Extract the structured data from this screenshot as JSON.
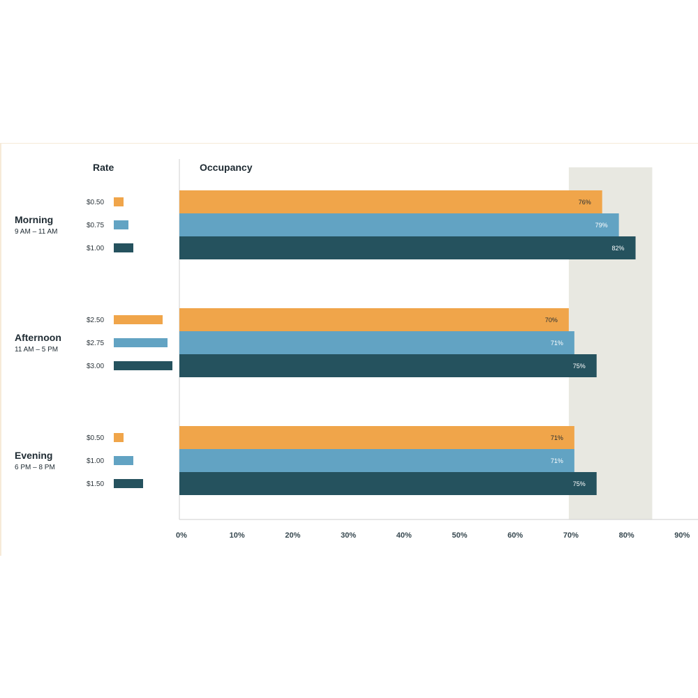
{
  "chart_data": {
    "type": "bar",
    "orientation": "horizontal",
    "rate_header": "Rate",
    "occupancy_header": "Occupancy",
    "x_range": [
      0,
      90
    ],
    "x_ticks": [
      "0%",
      "10%",
      "20%",
      "30%",
      "40%",
      "50%",
      "60%",
      "70%",
      "80%",
      "90%"
    ],
    "target_band": [
      70,
      85
    ],
    "colors": {
      "tier1": "#f0a54a",
      "tier2": "#62a3c3",
      "tier3": "#25525e",
      "band": "#e8e8e1"
    },
    "groups": [
      {
        "name": "Morning",
        "time": "9 AM – 11 AM",
        "bars": [
          {
            "rate_label": "$0.50",
            "rate": 0.5,
            "occupancy": 76,
            "value_label": "76%"
          },
          {
            "rate_label": "$0.75",
            "rate": 0.75,
            "occupancy": 79,
            "value_label": "79%"
          },
          {
            "rate_label": "$1.00",
            "rate": 1.0,
            "occupancy": 82,
            "value_label": "82%"
          }
        ]
      },
      {
        "name": "Afternoon",
        "time": "11 AM – 5 PM",
        "bars": [
          {
            "rate_label": "$2.50",
            "rate": 2.5,
            "occupancy": 70,
            "value_label": "70%"
          },
          {
            "rate_label": "$2.75",
            "rate": 2.75,
            "occupancy": 71,
            "value_label": "71%"
          },
          {
            "rate_label": "$3.00",
            "rate": 3.0,
            "occupancy": 75,
            "value_label": "75%"
          }
        ]
      },
      {
        "name": "Evening",
        "time": "6 PM – 8 PM",
        "bars": [
          {
            "rate_label": "$0.50",
            "rate": 0.5,
            "occupancy": 71,
            "value_label": "71%"
          },
          {
            "rate_label": "$1.00",
            "rate": 1.0,
            "occupancy": 71,
            "value_label": "71%"
          },
          {
            "rate_label": "$1.50",
            "rate": 1.5,
            "occupancy": 75,
            "value_label": "75%"
          }
        ]
      }
    ]
  }
}
